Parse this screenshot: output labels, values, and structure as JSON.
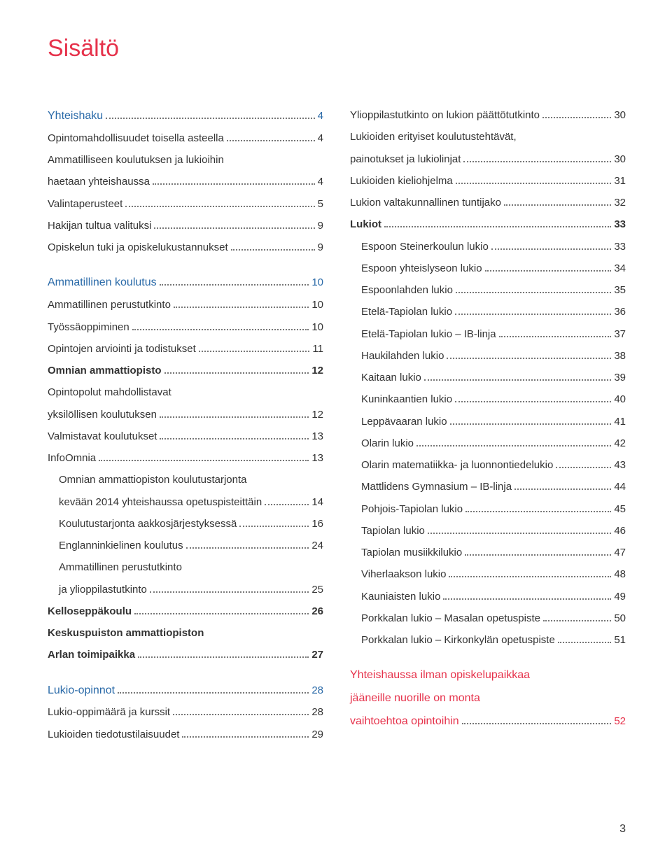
{
  "title": "Sisältö",
  "colors": {
    "accent": "#e6324b",
    "blue": "#2a6aa8",
    "text": "#333333",
    "dots": "#777777",
    "bg": "#ffffff"
  },
  "fonts": {
    "title_size": 34,
    "row_size": 15
  },
  "page_number": "3",
  "col_left": [
    {
      "label": "Yhteishaku",
      "page": "4",
      "style": "blue",
      "indent": 0
    },
    {
      "label": "Opintomahdollisuudet toisella asteella",
      "page": "4",
      "indent": 0
    },
    {
      "label": "Ammatilliseen koulutuksen ja lukioihin",
      "cont": true,
      "indent": 0
    },
    {
      "label": "haetaan yhteishaussa",
      "page": "4",
      "indent": 0
    },
    {
      "label": "Valintaperusteet",
      "page": "5",
      "indent": 0
    },
    {
      "label": "Hakijan tultua valituksi",
      "page": "9",
      "indent": 0
    },
    {
      "label": "Opiskelun tuki ja opiskelukustannukset",
      "page": "9",
      "indent": 0
    },
    {
      "gap": true
    },
    {
      "label": "Ammatillinen koulutus",
      "page": "10",
      "style": "blue",
      "indent": 0
    },
    {
      "label": "Ammatillinen perustutkinto",
      "page": "10",
      "indent": 0
    },
    {
      "label": "Työssäoppiminen",
      "page": "10",
      "indent": 0
    },
    {
      "label": "Opintojen arviointi ja todistukset",
      "page": "11",
      "indent": 0
    },
    {
      "label": "Omnian ammattiopisto",
      "page": "12",
      "style": "bold",
      "indent": 0
    },
    {
      "label": "Opintopolut mahdollistavat",
      "cont": true,
      "indent": 0
    },
    {
      "label": "yksilöllisen koulutuksen",
      "page": "12",
      "indent": 0
    },
    {
      "label": "Valmistavat koulutukset",
      "page": "13",
      "indent": 0
    },
    {
      "label": "InfoOmnia",
      "page": "13",
      "indent": 0
    },
    {
      "label": "Omnian ammattiopiston koulutustarjonta",
      "cont": true,
      "indent": 1
    },
    {
      "label": "kevään 2014 yhteishaussa opetuspisteittäin",
      "page": "14",
      "indent": 1
    },
    {
      "label": "Koulutustarjonta aakkosjärjestyksessä",
      "page": "16",
      "indent": 1
    },
    {
      "label": "Englanninkielinen koulutus",
      "page": "24",
      "indent": 1
    },
    {
      "label": "Ammatillinen perustutkinto",
      "cont": true,
      "indent": 1
    },
    {
      "label": "ja ylioppilastutkinto",
      "page": "25",
      "indent": 1
    },
    {
      "label": "Kelloseppäkoulu",
      "page": "26",
      "style": "bold",
      "indent": 0
    },
    {
      "label": "Keskuspuiston ammattiopiston",
      "style": "bold",
      "cont": true,
      "indent": 0
    },
    {
      "label": "Arlan toimipaikka",
      "page": "27",
      "style": "bold",
      "indent": 0
    },
    {
      "gap": true
    },
    {
      "label": "Lukio-opinnot",
      "page": "28",
      "style": "blue",
      "indent": 0
    },
    {
      "label": "Lukio-oppimäärä ja kurssit",
      "page": "28",
      "indent": 0
    },
    {
      "label": "Lukioiden tiedotustilaisuudet",
      "page": "29",
      "indent": 0
    }
  ],
  "col_right": [
    {
      "label": "Ylioppilastutkinto on lukion päättötutkinto",
      "page": "30",
      "indent": 0
    },
    {
      "label": "Lukioiden erityiset koulutustehtävät,",
      "cont": true,
      "indent": 0
    },
    {
      "label": "painotukset ja lukiolinjat",
      "page": "30",
      "indent": 0
    },
    {
      "label": "Lukioiden kieliohjelma",
      "page": "31",
      "indent": 0
    },
    {
      "label": "Lukion valtakunnallinen tuntijako",
      "page": "32",
      "indent": 0
    },
    {
      "label": "Lukiot",
      "page": "33",
      "style": "bold",
      "indent": 0
    },
    {
      "label": "Espoon Steinerkoulun lukio",
      "page": "33",
      "indent": 1
    },
    {
      "label": "Espoon yhteislyseon lukio",
      "page": "34",
      "indent": 1
    },
    {
      "label": "Espoonlahden lukio",
      "page": "35",
      "indent": 1
    },
    {
      "label": "Etelä-Tapiolan lukio",
      "page": "36",
      "indent": 1
    },
    {
      "label": "Etelä-Tapiolan lukio – IB-linja",
      "page": "37",
      "indent": 1
    },
    {
      "label": "Haukilahden lukio",
      "page": "38",
      "indent": 1
    },
    {
      "label": "Kaitaan lukio",
      "page": "39",
      "indent": 1
    },
    {
      "label": "Kuninkaantien lukio",
      "page": "40",
      "indent": 1
    },
    {
      "label": "Leppävaaran lukio",
      "page": "41",
      "indent": 1
    },
    {
      "label": "Olarin lukio",
      "page": "42",
      "indent": 1
    },
    {
      "label": "Olarin matematiikka- ja luonnontiedelukio",
      "page": "43",
      "indent": 1
    },
    {
      "label": "Mattlidens Gymnasium – IB-linja",
      "page": "44",
      "indent": 1
    },
    {
      "label": "Pohjois-Tapiolan lukio",
      "page": "45",
      "indent": 1
    },
    {
      "label": "Tapiolan lukio",
      "page": "46",
      "indent": 1
    },
    {
      "label": "Tapiolan musiikkilukio",
      "page": "47",
      "indent": 1
    },
    {
      "label": "Viherlaakson lukio",
      "page": "48",
      "indent": 1
    },
    {
      "label": "Kauniaisten lukio",
      "page": "49",
      "indent": 1
    },
    {
      "label": "Porkkalan lukio – Masalan opetuspiste",
      "page": "50",
      "indent": 1
    },
    {
      "label": "Porkkalan lukio – Kirkonkylän opetuspiste",
      "page": "51",
      "indent": 1
    },
    {
      "gap": true
    },
    {
      "label": "Yhteishaussa ilman opiskelupaikkaa",
      "style": "accent",
      "cont": true,
      "indent": 0
    },
    {
      "label": "jääneille nuorille on monta",
      "style": "accent",
      "cont": true,
      "indent": 0
    },
    {
      "label": "vaihtoehtoa opintoihin",
      "page": "52",
      "style": "accent",
      "indent": 0
    }
  ]
}
